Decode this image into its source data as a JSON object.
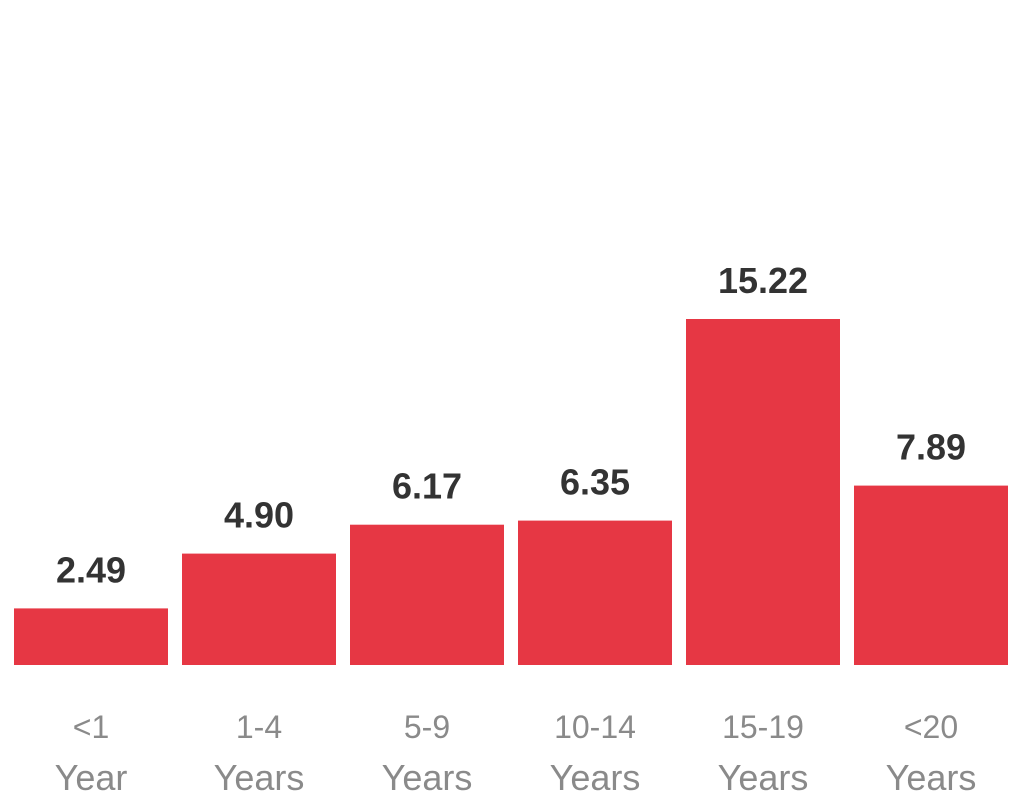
{
  "chart_data": {
    "type": "bar",
    "categories": [
      {
        "line1": "<1",
        "line2": "Year"
      },
      {
        "line1": "1-4",
        "line2": "Years"
      },
      {
        "line1": "5-9",
        "line2": "Years"
      },
      {
        "line1": "10-14",
        "line2": "Years"
      },
      {
        "line1": "15-19",
        "line2": "Years"
      },
      {
        "line1": "<20",
        "line2": "Years"
      }
    ],
    "values": [
      2.49,
      4.9,
      6.17,
      6.35,
      15.22,
      7.89
    ],
    "value_labels": [
      "2.49",
      "4.90",
      "6.17",
      "6.35",
      "15.22",
      "7.89"
    ],
    "title": "",
    "xlabel": "",
    "ylabel": "",
    "ylim": [
      0,
      15.22
    ],
    "grid": false,
    "bar_color": "#e63744"
  }
}
